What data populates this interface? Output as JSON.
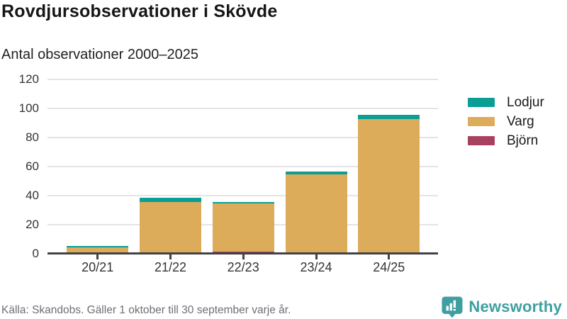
{
  "header": {
    "title": "Rovdjursobservationer i Skövde",
    "subtitle": "Antal observationer 2000–2025"
  },
  "chart_data": {
    "type": "bar",
    "stacked": true,
    "title": "Rovdjursobservationer i Skövde",
    "subtitle": "Antal observationer 2000–2025",
    "categories": [
      "20/21",
      "21/22",
      "22/23",
      "23/24",
      "24/25"
    ],
    "series": [
      {
        "name": "Björn",
        "color": "#a8415f",
        "values": [
          0,
          0,
          1,
          0,
          0
        ]
      },
      {
        "name": "Varg",
        "color": "#dcac5b",
        "values": [
          4,
          35,
          33,
          54,
          92
        ]
      },
      {
        "name": "Lodjur",
        "color": "#0a9e94",
        "values": [
          1,
          3,
          1,
          2,
          3
        ]
      }
    ],
    "totals": [
      5,
      38,
      35,
      56,
      95
    ],
    "ylim": [
      0,
      120
    ],
    "yticks": [
      0,
      20,
      40,
      60,
      80,
      100,
      120
    ],
    "grid": true,
    "legend_position": "right",
    "legend_order": [
      "Lodjur",
      "Varg",
      "Björn"
    ]
  },
  "footer": {
    "source": "Källa: Skandobs. Gäller 1 oktober till 30 september varje år.",
    "brand": "Newsworthy"
  },
  "colors": {
    "lodjur": "#0a9e94",
    "varg": "#dcac5b",
    "bjorn": "#a8415f",
    "axis": "#434347",
    "grid": "#e4e4e4",
    "brand_teal": "#3f9fa0",
    "text_muted": "#6f6f77"
  }
}
